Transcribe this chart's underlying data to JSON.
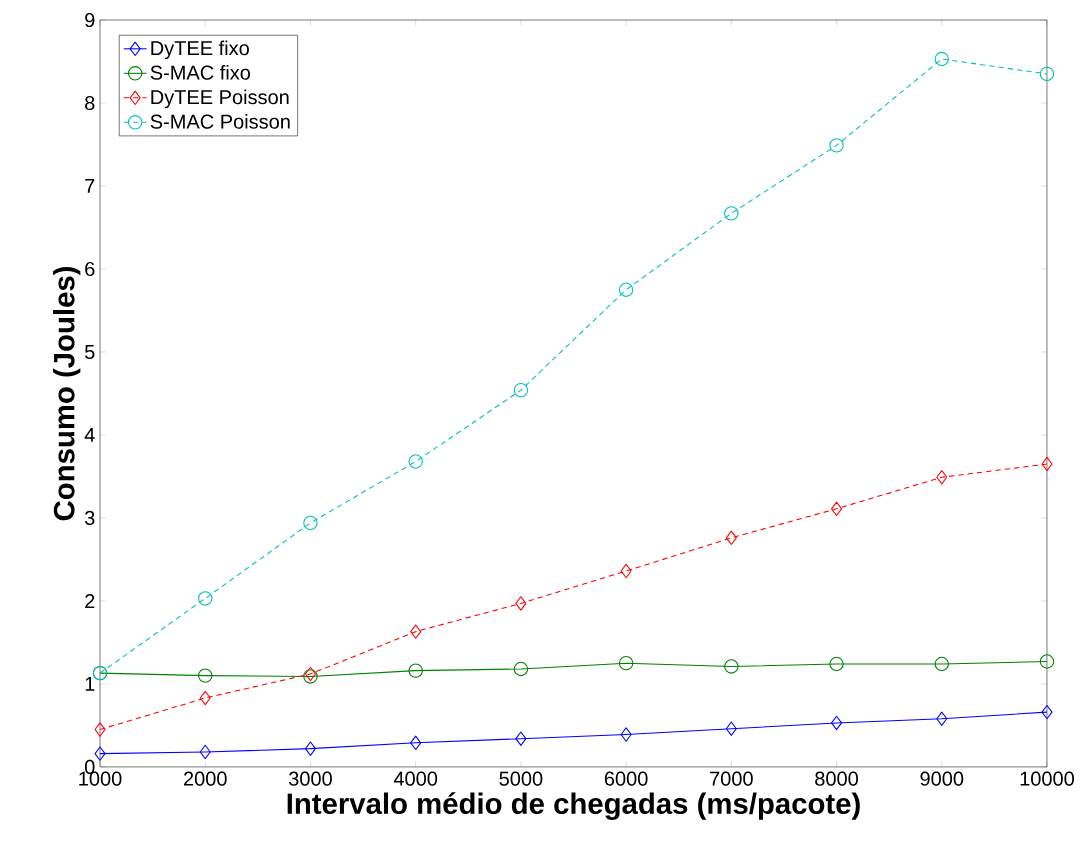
{
  "chart_data": {
    "type": "line",
    "xlabel": "Intervalo médio de chegadas (ms/pacote)",
    "ylabel": "Consumo (Joules)",
    "x": [
      1000,
      2000,
      3000,
      4000,
      5000,
      6000,
      7000,
      8000,
      9000,
      10000
    ],
    "xlim": [
      1000,
      10000
    ],
    "ylim": [
      0,
      9
    ],
    "xticks": [
      1000,
      2000,
      3000,
      4000,
      5000,
      6000,
      7000,
      8000,
      9000,
      10000
    ],
    "yticks": [
      0,
      1,
      2,
      3,
      4,
      5,
      6,
      7,
      8,
      9
    ],
    "legend": "top left",
    "grid": false,
    "series": [
      {
        "name": "DyTEE fixo",
        "color": "#0000ff",
        "marker": "diamond",
        "line_style": "solid",
        "values": [
          0.16,
          0.18,
          0.22,
          0.29,
          0.34,
          0.39,
          0.46,
          0.53,
          0.58,
          0.66
        ]
      },
      {
        "name": "S-MAC fixo",
        "color": "#008000",
        "marker": "circle",
        "line_style": "solid",
        "values": [
          1.13,
          1.1,
          1.09,
          1.16,
          1.18,
          1.25,
          1.21,
          1.24,
          1.24,
          1.27
        ]
      },
      {
        "name": "DyTEE Poisson",
        "color": "#ff0000",
        "marker": "diamond",
        "line_style": "dashed",
        "values": [
          0.45,
          0.83,
          1.12,
          1.63,
          1.97,
          2.36,
          2.76,
          3.11,
          3.49,
          3.65
        ]
      },
      {
        "name": "S-MAC Poisson",
        "color": "#00bfbf",
        "marker": "circle",
        "line_style": "dashed",
        "values": [
          1.13,
          2.03,
          2.94,
          3.68,
          4.54,
          5.75,
          6.67,
          7.49,
          8.53,
          8.35
        ]
      }
    ]
  }
}
